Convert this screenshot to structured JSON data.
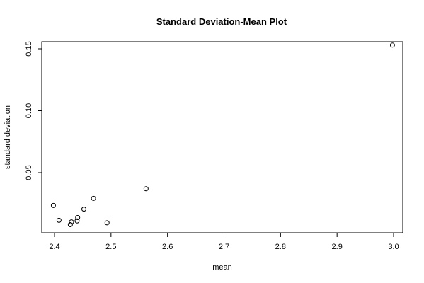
{
  "chart_data": {
    "type": "scatter",
    "title": "Standard Deviation-Mean Plot",
    "xlabel": "mean",
    "ylabel": "standard deviation",
    "xlim": [
      2.4,
      3.0
    ],
    "ylim": [
      0.0,
      0.15
    ],
    "x_ticks": [
      2.4,
      2.5,
      2.6,
      2.7,
      2.8,
      2.9,
      3.0
    ],
    "x_tick_labels": [
      "2.4",
      "2.5",
      "2.6",
      "2.7",
      "2.8",
      "2.9",
      "3.0"
    ],
    "y_ticks": [
      0.05,
      0.1,
      0.15
    ],
    "y_tick_labels": [
      "0.05",
      "0.10",
      "0.15"
    ],
    "grid": false,
    "marker": "open-circle",
    "points": [
      {
        "x": 2.398,
        "y": 0.0235
      },
      {
        "x": 2.408,
        "y": 0.0115
      },
      {
        "x": 2.428,
        "y": 0.008
      },
      {
        "x": 2.43,
        "y": 0.0102
      },
      {
        "x": 2.44,
        "y": 0.011
      },
      {
        "x": 2.441,
        "y": 0.0137
      },
      {
        "x": 2.452,
        "y": 0.0205
      },
      {
        "x": 2.469,
        "y": 0.0292
      },
      {
        "x": 2.493,
        "y": 0.0095
      },
      {
        "x": 2.562,
        "y": 0.037
      },
      {
        "x": 2.998,
        "y": 0.153
      }
    ]
  }
}
